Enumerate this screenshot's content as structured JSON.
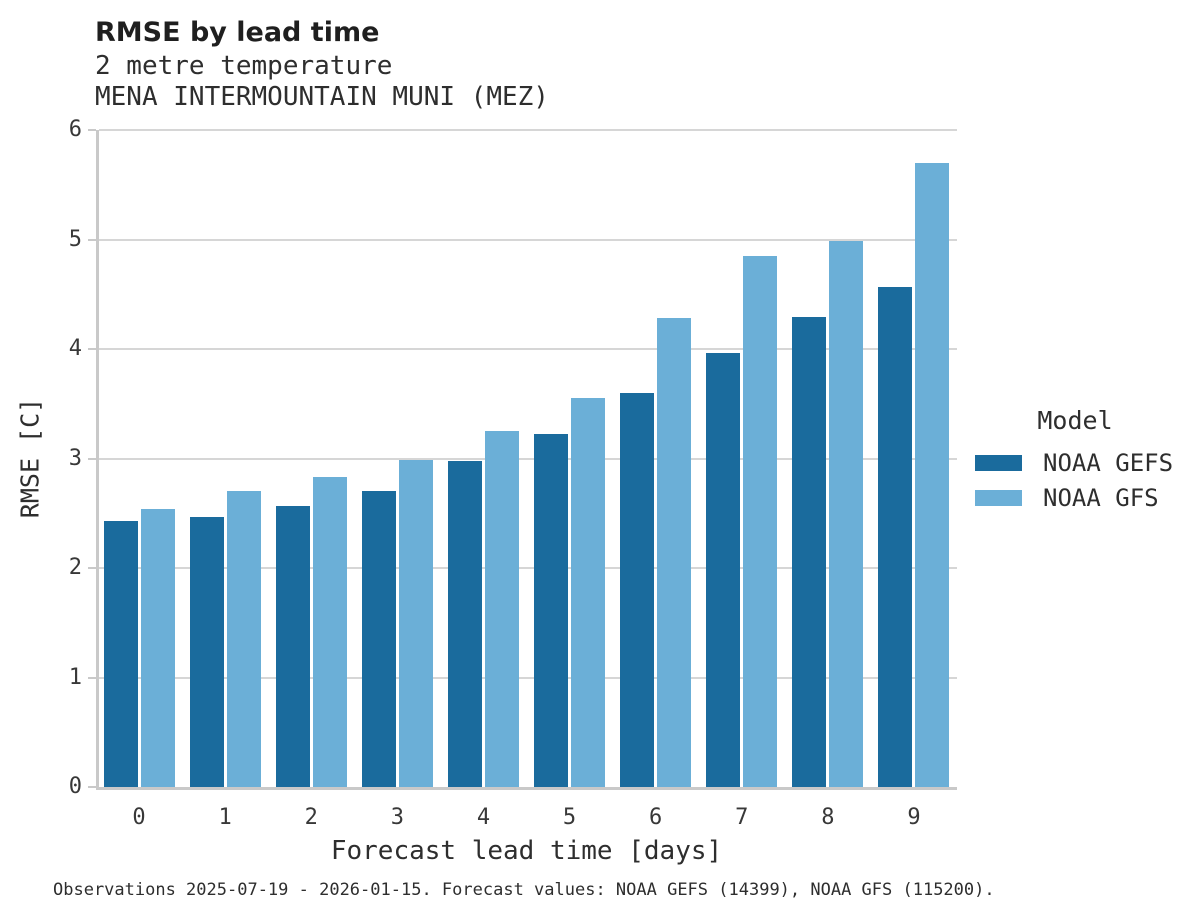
{
  "chart_data": {
    "type": "bar",
    "title": "RMSE by lead time",
    "subtitle": "2 metre temperature",
    "subtitle2": "MENA INTERMOUNTAIN MUNI (MEZ)",
    "xlabel": "Forecast lead time [days]",
    "ylabel": "RMSE [C]",
    "categories": [
      "0",
      "1",
      "2",
      "3",
      "4",
      "5",
      "6",
      "7",
      "8",
      "9"
    ],
    "yticks": [
      0,
      1,
      2,
      3,
      4,
      5,
      6
    ],
    "ylim": [
      0,
      6
    ],
    "grid": true,
    "legend_position": "right",
    "legend_title": "Model",
    "series": [
      {
        "name": "NOAA GEFS",
        "color": "#1a6b9d",
        "values": [
          2.43,
          2.47,
          2.57,
          2.7,
          2.98,
          3.22,
          3.6,
          3.96,
          4.29,
          4.57
        ]
      },
      {
        "name": "NOAA GFS",
        "color": "#6bafd7",
        "values": [
          2.54,
          2.7,
          2.83,
          2.99,
          3.25,
          3.55,
          4.28,
          4.85,
          4.99,
          5.7
        ]
      }
    ],
    "caption": "Observations 2025-07-19 - 2026-01-15. Forecast values: NOAA GEFS (14399), NOAA GFS (115200)."
  },
  "colors": {
    "bar_dark": "#1a6b9d",
    "bar_light": "#6bafd7",
    "grid": "#d6d6d6",
    "spine": "#c9c9c9",
    "text": "#2e2e2e"
  }
}
